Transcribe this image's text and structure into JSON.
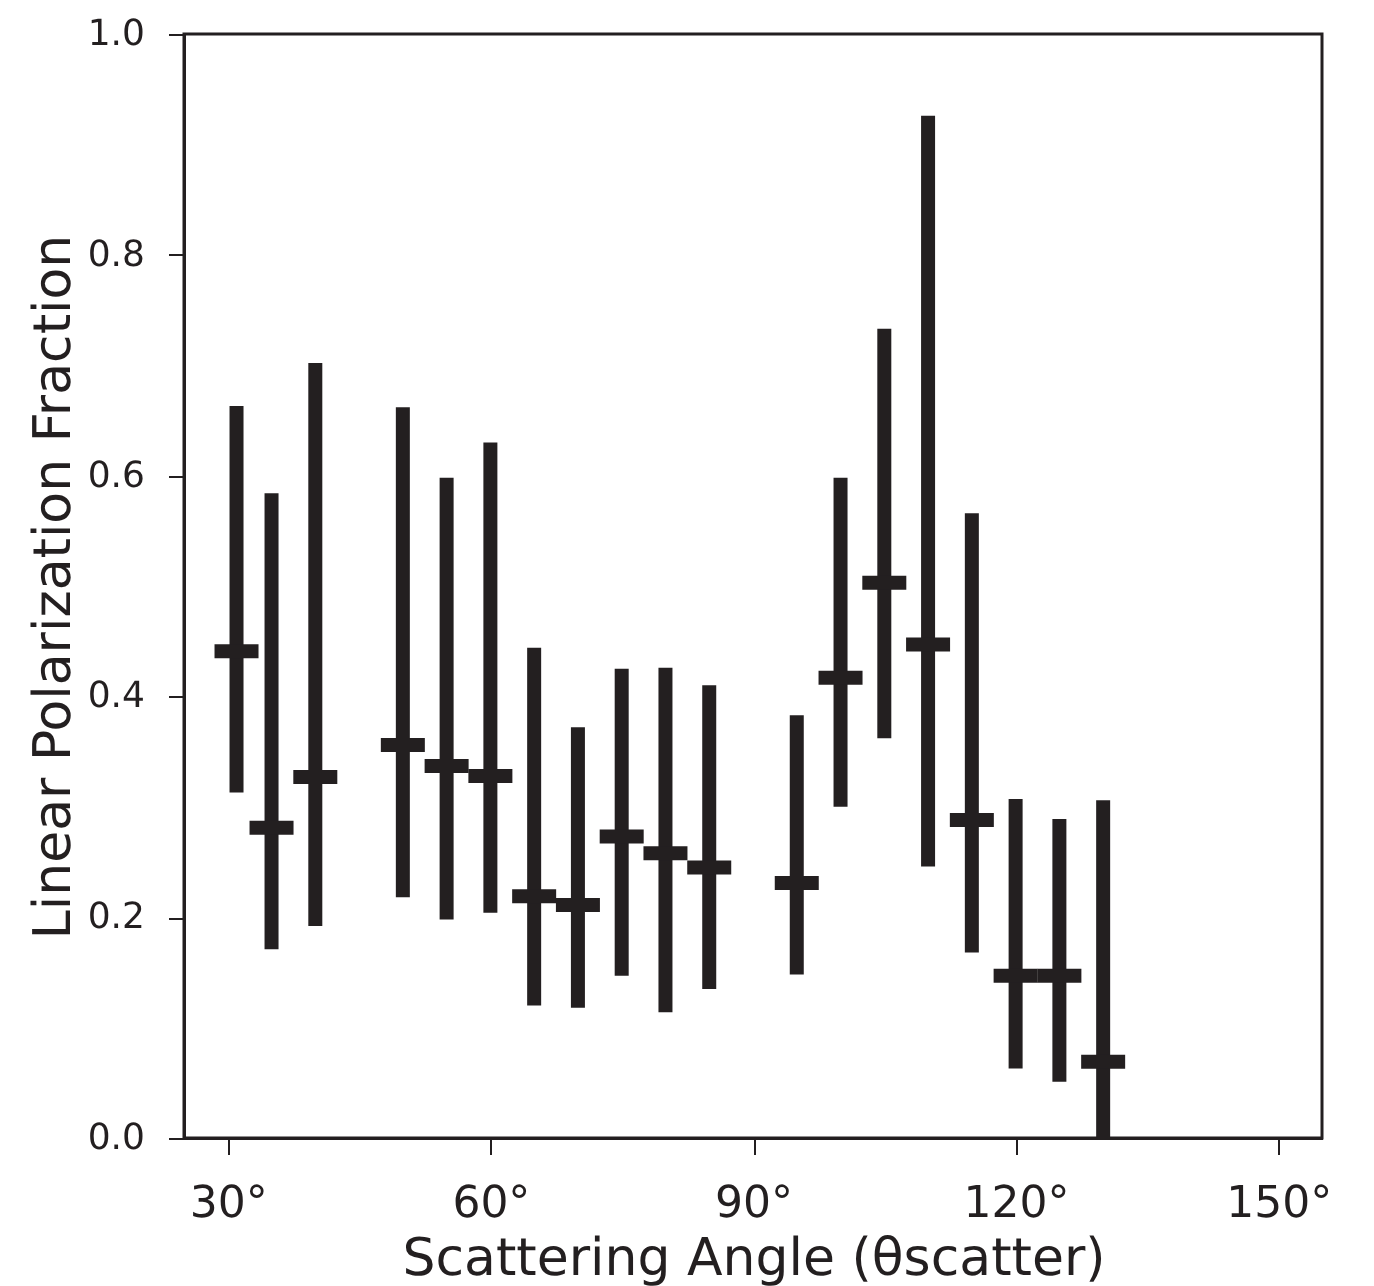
{
  "chart_data": {
    "type": "scatter",
    "xlabel": "Scattering Angle (θscatter)",
    "ylabel": "Linear Polarization Fraction",
    "x": [
      31,
      35,
      40,
      50,
      55,
      60,
      65,
      70,
      75,
      80,
      85,
      95,
      100,
      105,
      110,
      115,
      120,
      125,
      130
    ],
    "series": [
      {
        "color": "#231f20",
        "values": [
          0.441,
          0.281,
          0.327,
          0.356,
          0.337,
          0.328,
          0.219,
          0.211,
          0.273,
          0.258,
          0.245,
          0.231,
          0.417,
          0.503,
          0.447,
          0.288,
          0.147,
          0.147,
          0.069
        ],
        "errors": [
          [
            0.313,
            0.663
          ],
          [
            0.171,
            0.584
          ],
          [
            0.192,
            0.702
          ],
          [
            0.218,
            0.662
          ],
          [
            0.198,
            0.598
          ],
          [
            0.204,
            0.63
          ],
          [
            0.12,
            0.444
          ],
          [
            0.118,
            0.372
          ],
          [
            0.147,
            0.425
          ],
          [
            0.114,
            0.426
          ],
          [
            0.135,
            0.41
          ],
          [
            0.148,
            0.383
          ],
          [
            0.3,
            0.598
          ],
          [
            0.362,
            0.733
          ],
          [
            0.246,
            0.926
          ],
          [
            0.168,
            0.566
          ],
          [
            0.063,
            0.307
          ],
          [
            0.051,
            0.289
          ],
          [
            0.0,
            0.306
          ]
        ]
      }
    ],
    "xlim": [
      25,
      155
    ],
    "xticks": [
      {
        "value": 30,
        "label": "30°"
      },
      {
        "value": 60,
        "label": "60°"
      },
      {
        "value": 90,
        "label": "90°"
      },
      {
        "value": 120,
        "label": "120°"
      },
      {
        "value": 150,
        "label": "150°"
      }
    ],
    "ylim": [
      0,
      1
    ],
    "yticks": [
      {
        "value": 0,
        "label": "0.0"
      },
      {
        "value": 0.2,
        "label": "0.2"
      },
      {
        "value": 0.4,
        "label": "0.4"
      },
      {
        "value": 0.6,
        "label": "0.6"
      },
      {
        "value": 0.8,
        "label": "0.8"
      },
      {
        "value": 1,
        "label": "1.0"
      }
    ],
    "grid": false
  }
}
